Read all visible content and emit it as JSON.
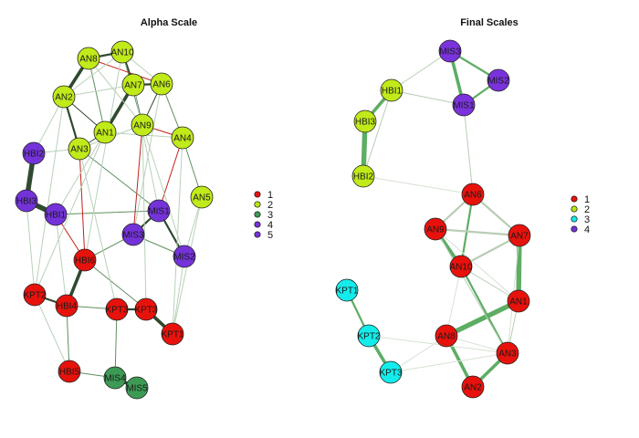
{
  "alpha_panel": {
    "title": "Alpha Scale",
    "legend": [
      {
        "label": "1",
        "color": "#e8120c"
      },
      {
        "label": "2",
        "color": "#b8e615"
      },
      {
        "label": "3",
        "color": "#3d9a55"
      },
      {
        "label": "4",
        "color": "#7433d9"
      },
      {
        "label": "5",
        "color": "#7433d9"
      }
    ],
    "nodes": [
      {
        "id": "AN10",
        "label": "AN10",
        "group": "2"
      },
      {
        "id": "AN8",
        "label": "AN8",
        "group": "2"
      },
      {
        "id": "AN7",
        "label": "AN7",
        "group": "2"
      },
      {
        "id": "AN6",
        "label": "AN6",
        "group": "2"
      },
      {
        "id": "AN2",
        "label": "AN2",
        "group": "2"
      },
      {
        "id": "AN1",
        "label": "AN1",
        "group": "2"
      },
      {
        "id": "AN9",
        "label": "AN9",
        "group": "2"
      },
      {
        "id": "AN3",
        "label": "AN3",
        "group": "2"
      },
      {
        "id": "AN4",
        "label": "AN4",
        "group": "2"
      },
      {
        "id": "AN5",
        "label": "AN5",
        "group": "2"
      },
      {
        "id": "HBI2",
        "label": "HBI2",
        "group": "4"
      },
      {
        "id": "HBI3",
        "label": "HBI3",
        "group": "4"
      },
      {
        "id": "HBI1",
        "label": "HBI1",
        "group": "4"
      },
      {
        "id": "MIS1",
        "label": "MIS1",
        "group": "5"
      },
      {
        "id": "MIS3",
        "label": "MIS3",
        "group": "5"
      },
      {
        "id": "MIS2",
        "label": "MIS2",
        "group": "5"
      },
      {
        "id": "HBI6",
        "label": "HBI6",
        "group": "1"
      },
      {
        "id": "KPT2",
        "label": "KPT2",
        "group": "1"
      },
      {
        "id": "HBI4",
        "label": "HBI4",
        "group": "1"
      },
      {
        "id": "KPT3",
        "label": "KPT3",
        "group": "1"
      },
      {
        "id": "KPT3b",
        "label": "KPT3",
        "group": "1"
      },
      {
        "id": "KPT1",
        "label": "KPT1",
        "group": "1"
      },
      {
        "id": "HBI5",
        "label": "HBI5",
        "group": "1"
      },
      {
        "id": "MIS4",
        "label": "MIS4",
        "group": "3"
      },
      {
        "id": "MIS5",
        "label": "MIS5",
        "group": "3"
      }
    ],
    "edges": [
      {
        "from": "AN8",
        "to": "AN2",
        "weight": 3,
        "color": "dark"
      },
      {
        "from": "AN8",
        "to": "AN10",
        "weight": 2,
        "color": "dark"
      },
      {
        "from": "AN10",
        "to": "AN7",
        "weight": 2,
        "color": "dark"
      },
      {
        "from": "AN7",
        "to": "AN6",
        "weight": 2,
        "color": "dark"
      },
      {
        "from": "AN6",
        "to": "AN9",
        "weight": 1,
        "color": "dark"
      },
      {
        "from": "AN7",
        "to": "AN9",
        "weight": 1,
        "color": "dark"
      },
      {
        "from": "AN7",
        "to": "AN1",
        "weight": 3,
        "color": "dark"
      },
      {
        "from": "AN2",
        "to": "AN3",
        "weight": 2,
        "color": "dark"
      },
      {
        "from": "AN2",
        "to": "AN1",
        "weight": 1,
        "color": "dark"
      },
      {
        "from": "AN8",
        "to": "AN1",
        "weight": 1,
        "color": "mid"
      },
      {
        "from": "AN1",
        "to": "AN3",
        "weight": 1,
        "color": "dark"
      },
      {
        "from": "AN9",
        "to": "AN4",
        "weight": 1,
        "color": "red"
      },
      {
        "from": "AN6",
        "to": "AN4",
        "weight": 1,
        "color": "mid"
      },
      {
        "from": "AN4",
        "to": "AN5",
        "weight": 1,
        "color": "mid"
      },
      {
        "from": "AN8",
        "to": "AN6",
        "weight": 1,
        "color": "red"
      },
      {
        "from": "AN10",
        "to": "AN9",
        "weight": 1,
        "color": "mid"
      },
      {
        "from": "HBI2",
        "to": "HBI3",
        "weight": 4,
        "color": "dark"
      },
      {
        "from": "HBI3",
        "to": "HBI1",
        "weight": 4,
        "color": "dark"
      },
      {
        "from": "HBI1",
        "to": "MIS1",
        "weight": 1,
        "color": "mid"
      },
      {
        "from": "MIS1",
        "to": "MIS3",
        "weight": 2,
        "color": "dark"
      },
      {
        "from": "MIS1",
        "to": "MIS2",
        "weight": 2,
        "color": "dark"
      },
      {
        "from": "MIS3",
        "to": "MIS2",
        "weight": 1,
        "color": "mid"
      },
      {
        "from": "MIS1",
        "to": "AN4",
        "weight": 1,
        "color": "red"
      },
      {
        "from": "MIS3",
        "to": "AN9",
        "weight": 1,
        "color": "red"
      },
      {
        "from": "HBI6",
        "to": "AN3",
        "weight": 1,
        "color": "red"
      },
      {
        "from": "HBI1",
        "to": "HBI6",
        "weight": 1,
        "color": "red"
      },
      {
        "from": "HBI6",
        "to": "HBI4",
        "weight": 3,
        "color": "dark"
      },
      {
        "from": "HBI6",
        "to": "MIS3",
        "weight": 1,
        "color": "mid"
      },
      {
        "from": "HBI4",
        "to": "KPT2",
        "weight": 2,
        "color": "dark"
      },
      {
        "from": "HBI4",
        "to": "KPT3",
        "weight": 1,
        "color": "mid"
      },
      {
        "from": "KPT3",
        "to": "KPT3b",
        "weight": 2,
        "color": "dark"
      },
      {
        "from": "KPT3b",
        "to": "KPT1",
        "weight": 3,
        "color": "dark"
      },
      {
        "from": "HBI4",
        "to": "HBI5",
        "weight": 1,
        "color": "mid"
      },
      {
        "from": "HBI5",
        "to": "MIS4",
        "weight": 1,
        "color": "mid"
      },
      {
        "from": "MIS4",
        "to": "MIS5",
        "weight": 3,
        "color": "dark"
      },
      {
        "from": "KPT3",
        "to": "MIS4",
        "weight": 1,
        "color": "mid"
      },
      {
        "from": "HBI6",
        "to": "KPT3b",
        "weight": 1,
        "color": "mid"
      },
      {
        "from": "AN3",
        "to": "MIS1",
        "weight": 1,
        "color": "mid"
      },
      {
        "from": "AN5",
        "to": "MIS2",
        "weight": 1,
        "color": "light"
      },
      {
        "from": "AN2",
        "to": "HBI2",
        "weight": 1,
        "color": "light"
      },
      {
        "from": "AN3",
        "to": "HBI2",
        "weight": 1,
        "color": "light"
      },
      {
        "from": "AN1",
        "to": "HBI1",
        "weight": 1,
        "color": "light"
      },
      {
        "from": "AN1",
        "to": "KPT2",
        "weight": 1,
        "color": "light"
      },
      {
        "from": "AN9",
        "to": "KPT3b",
        "weight": 1,
        "color": "light"
      },
      {
        "from": "AN6",
        "to": "MIS3",
        "weight": 1,
        "color": "light"
      },
      {
        "from": "AN4",
        "to": "KPT1",
        "weight": 1,
        "color": "light"
      },
      {
        "from": "AN5",
        "to": "KPT1",
        "weight": 1,
        "color": "light"
      },
      {
        "from": "AN2",
        "to": "KPT2",
        "weight": 1,
        "color": "light"
      },
      {
        "from": "AN10",
        "to": "HBI6",
        "weight": 1,
        "color": "light"
      },
      {
        "from": "HBI1",
        "to": "HBI4",
        "weight": 1,
        "color": "light"
      },
      {
        "from": "KPT2",
        "to": "HBI5",
        "weight": 1,
        "color": "light"
      },
      {
        "from": "HBI3",
        "to": "KPT2",
        "weight": 1,
        "color": "light"
      },
      {
        "from": "MIS2",
        "to": "KPT1",
        "weight": 1,
        "color": "light"
      },
      {
        "from": "AN7",
        "to": "MIS1",
        "weight": 1,
        "color": "light"
      },
      {
        "from": "AN9",
        "to": "MIS2",
        "weight": 1,
        "color": "light"
      },
      {
        "from": "AN3",
        "to": "KPT3",
        "weight": 1,
        "color": "light"
      },
      {
        "from": "AN8",
        "to": "AN9",
        "weight": 1,
        "color": "light"
      },
      {
        "from": "AN2",
        "to": "AN7",
        "weight": 1,
        "color": "light"
      },
      {
        "from": "AN3",
        "to": "AN9",
        "weight": 1,
        "color": "light"
      },
      {
        "from": "AN1",
        "to": "AN4",
        "weight": 1,
        "color": "light"
      },
      {
        "from": "AN10",
        "to": "AN6",
        "weight": 1,
        "color": "light"
      },
      {
        "from": "AN2",
        "to": "AN10",
        "weight": 1,
        "color": "light"
      }
    ]
  },
  "final_panel": {
    "title": "Final Scales",
    "legend": [
      {
        "label": "1",
        "color": "#e8120c"
      },
      {
        "label": "2",
        "color": "#b8e615"
      },
      {
        "label": "3",
        "color": "#14e8e8"
      },
      {
        "label": "4",
        "color": "#7433d9"
      }
    ],
    "nodes": [
      {
        "id": "MIS3",
        "label": "MIS3",
        "group": "4"
      },
      {
        "id": "MIS2",
        "label": "MIS2",
        "group": "4"
      },
      {
        "id": "MIS1",
        "label": "MIS1",
        "group": "4"
      },
      {
        "id": "HBI1",
        "label": "HBI1",
        "group": "2"
      },
      {
        "id": "HBI3",
        "label": "HBI3",
        "group": "2"
      },
      {
        "id": "HBI2",
        "label": "HBI2",
        "group": "2"
      },
      {
        "id": "AN6",
        "label": "AN6",
        "group": "1"
      },
      {
        "id": "AN9",
        "label": "AN9",
        "group": "1"
      },
      {
        "id": "AN7",
        "label": "AN7",
        "group": "1"
      },
      {
        "id": "AN10",
        "label": "AN10",
        "group": "1"
      },
      {
        "id": "AN1",
        "label": "AN1",
        "group": "1"
      },
      {
        "id": "AN8",
        "label": "AN8",
        "group": "1"
      },
      {
        "id": "AN3",
        "label": "AN3",
        "group": "1"
      },
      {
        "id": "AN2",
        "label": "AN2",
        "group": "1"
      },
      {
        "id": "KPT1",
        "label": "KPT1",
        "group": "3"
      },
      {
        "id": "KPT2",
        "label": "KPT2",
        "group": "3"
      },
      {
        "id": "KPT3",
        "label": "KPT3",
        "group": "3"
      }
    ],
    "edges": [
      {
        "from": "MIS3",
        "to": "MIS1",
        "weight": 3,
        "color": "green"
      },
      {
        "from": "MIS3",
        "to": "MIS2",
        "weight": 2,
        "color": "green"
      },
      {
        "from": "MIS2",
        "to": "MIS1",
        "weight": 2,
        "color": "green"
      },
      {
        "from": "HBI1",
        "to": "MIS3",
        "weight": 1,
        "color": "grey"
      },
      {
        "from": "HBI1",
        "to": "MIS1",
        "weight": 1,
        "color": "grey"
      },
      {
        "from": "HBI1",
        "to": "HBI3",
        "weight": 3,
        "color": "green"
      },
      {
        "from": "HBI3",
        "to": "HBI2",
        "weight": 4,
        "color": "green"
      },
      {
        "from": "HBI1",
        "to": "HBI2",
        "weight": 1,
        "color": "grey"
      },
      {
        "from": "HBI2",
        "to": "AN6",
        "weight": 1,
        "color": "faint"
      },
      {
        "from": "MIS1",
        "to": "AN6",
        "weight": 1,
        "color": "grey"
      },
      {
        "from": "AN6",
        "to": "AN9",
        "weight": 2,
        "color": "grey"
      },
      {
        "from": "AN6",
        "to": "AN7",
        "weight": 2,
        "color": "grey"
      },
      {
        "from": "AN6",
        "to": "AN10",
        "weight": 2,
        "color": "green"
      },
      {
        "from": "AN9",
        "to": "AN10",
        "weight": 3,
        "color": "green"
      },
      {
        "from": "AN9",
        "to": "AN7",
        "weight": 2,
        "color": "grey"
      },
      {
        "from": "AN10",
        "to": "AN7",
        "weight": 2,
        "color": "grey"
      },
      {
        "from": "AN7",
        "to": "AN1",
        "weight": 4,
        "color": "green"
      },
      {
        "from": "AN1",
        "to": "AN8",
        "weight": 4,
        "color": "green"
      },
      {
        "from": "AN8",
        "to": "AN2",
        "weight": 3,
        "color": "green"
      },
      {
        "from": "AN1",
        "to": "AN3",
        "weight": 1,
        "color": "grey"
      },
      {
        "from": "AN3",
        "to": "AN2",
        "weight": 3,
        "color": "green"
      },
      {
        "from": "AN10",
        "to": "AN3",
        "weight": 2,
        "color": "green"
      },
      {
        "from": "AN9",
        "to": "AN3",
        "weight": 1,
        "color": "grey"
      },
      {
        "from": "AN10",
        "to": "AN1",
        "weight": 1,
        "color": "grey"
      },
      {
        "from": "AN7",
        "to": "AN3",
        "weight": 1,
        "color": "faint"
      },
      {
        "from": "AN8",
        "to": "AN3",
        "weight": 1,
        "color": "faint"
      },
      {
        "from": "AN10",
        "to": "AN8",
        "weight": 1,
        "color": "faint"
      },
      {
        "from": "KPT1",
        "to": "KPT2",
        "weight": 2,
        "color": "green"
      },
      {
        "from": "KPT2",
        "to": "KPT3",
        "weight": 3,
        "color": "green"
      },
      {
        "from": "KPT2",
        "to": "AN3",
        "weight": 1,
        "color": "faint"
      },
      {
        "from": "KPT3",
        "to": "AN3",
        "weight": 1,
        "color": "faint"
      },
      {
        "from": "KPT3",
        "to": "AN8",
        "weight": 1,
        "color": "faint"
      },
      {
        "from": "AN9",
        "to": "AN1",
        "weight": 1,
        "color": "faint"
      }
    ]
  }
}
